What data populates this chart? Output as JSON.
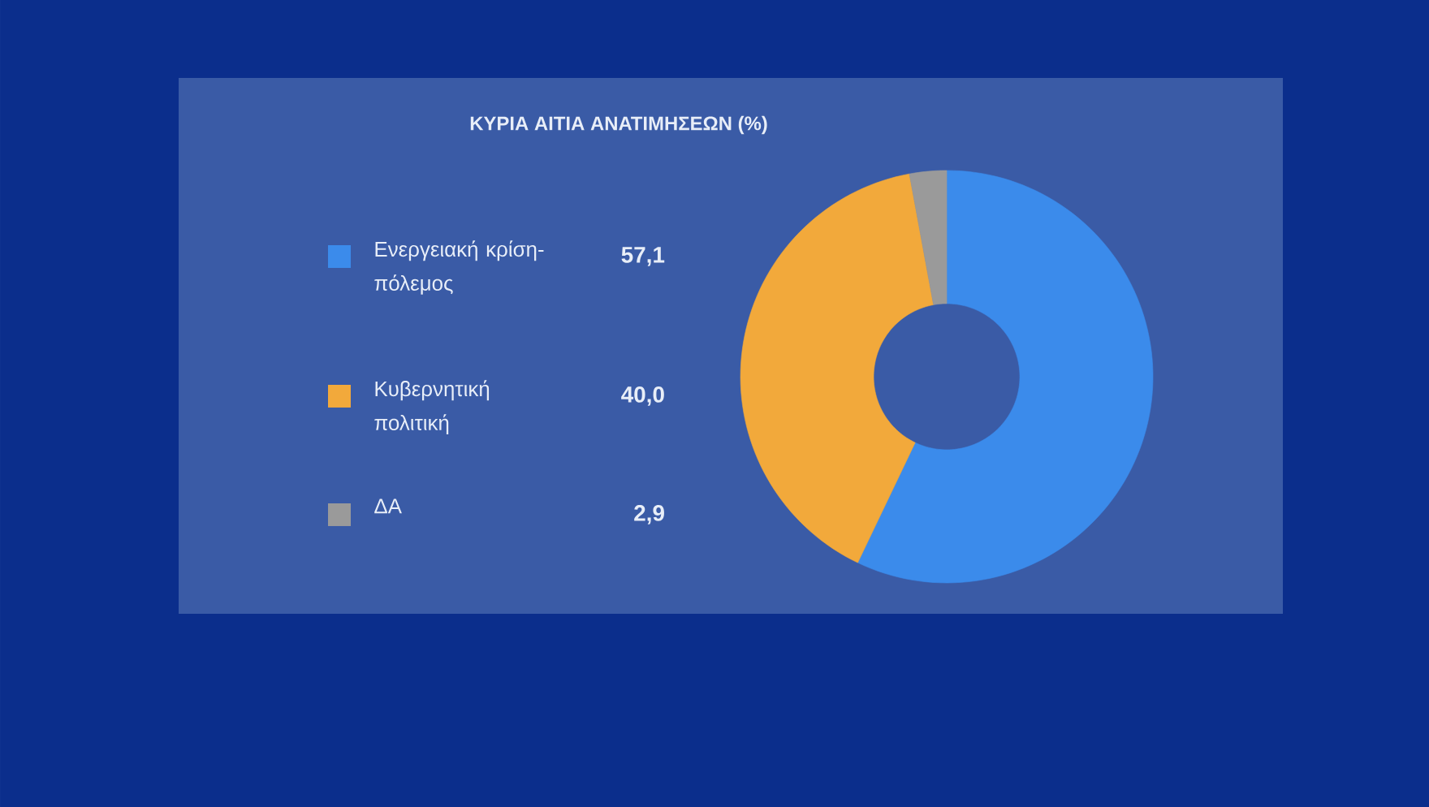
{
  "chart_data": {
    "type": "donut",
    "title": "ΚΥΡΙΑ ΑΙΤΙΑ ΑΝΑΤΙΜΗΣΕΩΝ (%)",
    "categories": [
      "Ενεργειακή κρίση-πόλεμος",
      "Κυβερνητική πολιτική",
      "ΔΑ"
    ],
    "values": [
      57.1,
      40.0,
      2.9
    ],
    "value_labels": [
      "57,1",
      "40,0",
      "2,9"
    ],
    "colors": [
      "#3b8beb",
      "#f2a93b",
      "#9a9a9a"
    ],
    "legend": "left"
  }
}
